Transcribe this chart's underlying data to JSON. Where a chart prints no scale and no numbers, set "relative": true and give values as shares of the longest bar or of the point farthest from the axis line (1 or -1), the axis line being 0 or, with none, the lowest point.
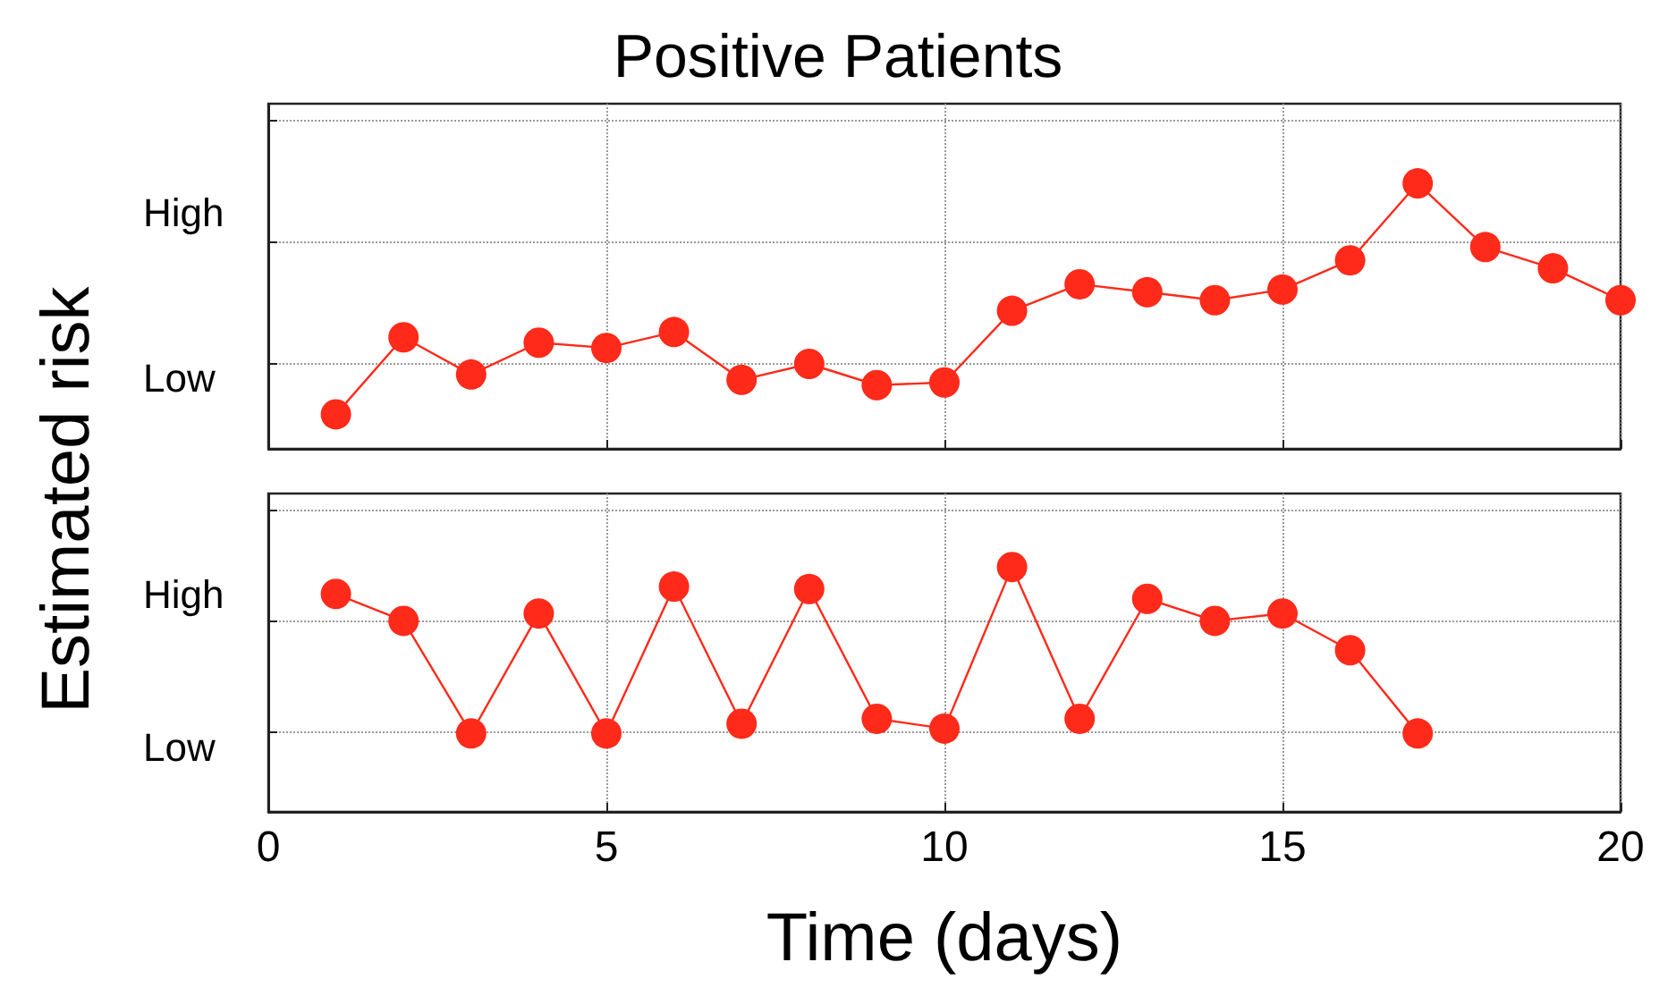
{
  "chart_data": [
    {
      "type": "line",
      "title": "Positive Patients",
      "ylabel": "Estimated risk",
      "relative": true,
      "xlim": [
        0,
        20
      ],
      "xticks": [
        0,
        5,
        10,
        15,
        20
      ],
      "tick_labels": false,
      "grid": true,
      "marker": "circle",
      "line_style": "solid",
      "annotations": [
        "High",
        "Low"
      ],
      "x": [
        1,
        2,
        3,
        4,
        5,
        6,
        7,
        8,
        9,
        10,
        11,
        12,
        13,
        14,
        15,
        16,
        17,
        18,
        19,
        20
      ],
      "series": [
        {
          "color": "#ff2a1a",
          "values": [
            0.13,
            0.42,
            0.28,
            0.4,
            0.38,
            0.44,
            0.26,
            0.32,
            0.24,
            0.25,
            0.52,
            0.62,
            0.59,
            0.56,
            0.6,
            0.71,
            1,
            0.76,
            0.68,
            0.56
          ]
        }
      ]
    },
    {
      "type": "line",
      "xlabel": "Time (days)",
      "relative": true,
      "xlim": [
        0,
        20
      ],
      "xticks": [
        0,
        5,
        10,
        15,
        20
      ],
      "tick_labels": "x",
      "grid": true,
      "marker": "circle",
      "line_style": "solid",
      "annotations": [
        "High",
        "Low"
      ],
      "series": [
        {
          "color": "#ff2a1a",
          "x": [
            1,
            2,
            3,
            4,
            5,
            6,
            7,
            8,
            9,
            10,
            11,
            12,
            13,
            14,
            15,
            16,
            17
          ],
          "values": [
            0.89,
            0.78,
            0.32,
            0.81,
            0.32,
            0.92,
            0.36,
            0.91,
            0.38,
            0.34,
            1,
            0.38,
            0.87,
            0.78,
            0.81,
            0.66,
            0.32
          ]
        }
      ]
    }
  ]
}
